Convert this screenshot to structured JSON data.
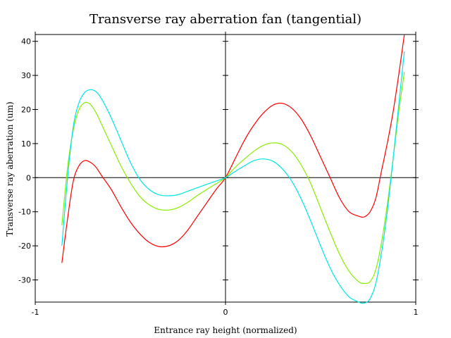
{
  "chart_data": {
    "type": "line",
    "title": "Transverse ray aberration fan (tangential)",
    "xlabel": "Entrance ray height (normalized)",
    "ylabel": "Transverse ray aberration (um)",
    "xlim": [
      -1,
      1
    ],
    "ylim": [
      -36.5,
      42
    ],
    "xticks": [
      -1,
      0,
      1
    ],
    "yticks": [
      -30,
      -20,
      -10,
      0,
      10,
      20,
      30,
      40
    ],
    "grid": false,
    "zero_lines": true,
    "legend": null,
    "series": [
      {
        "color": "#ff0000",
        "x": [
          -0.86,
          -0.83,
          -0.8,
          -0.77,
          -0.74,
          -0.71,
          -0.68,
          -0.65,
          -0.6,
          -0.55,
          -0.5,
          -0.45,
          -0.4,
          -0.35,
          -0.3,
          -0.25,
          -0.2,
          -0.15,
          -0.1,
          -0.05,
          0,
          0.05,
          0.1,
          0.15,
          0.2,
          0.25,
          0.3,
          0.35,
          0.4,
          0.45,
          0.5,
          0.55,
          0.6,
          0.65,
          0.7,
          0.73,
          0.76,
          0.79,
          0.82,
          0.85,
          0.88,
          0.91,
          0.94
        ],
        "y": [
          -25,
          -12,
          -1,
          3.5,
          5,
          4.5,
          3,
          0.5,
          -3.5,
          -8.5,
          -13,
          -16.5,
          -19,
          -20.2,
          -20,
          -18.5,
          -15.5,
          -11.5,
          -7.5,
          -3.5,
          0,
          5.5,
          11,
          15.5,
          19,
          21.3,
          21.8,
          20.3,
          17,
          12,
          6,
          0,
          -6,
          -10,
          -11.3,
          -11.5,
          -10,
          -6,
          2,
          10,
          19,
          30,
          42
        ]
      },
      {
        "color": "#88ee00",
        "x": [
          -0.86,
          -0.83,
          -0.8,
          -0.77,
          -0.74,
          -0.71,
          -0.68,
          -0.65,
          -0.6,
          -0.55,
          -0.5,
          -0.45,
          -0.4,
          -0.35,
          -0.3,
          -0.25,
          -0.2,
          -0.15,
          -0.1,
          -0.05,
          0,
          0.05,
          0.1,
          0.15,
          0.2,
          0.25,
          0.3,
          0.35,
          0.4,
          0.45,
          0.5,
          0.55,
          0.6,
          0.65,
          0.7,
          0.73,
          0.76,
          0.79,
          0.82,
          0.85,
          0.88,
          0.91,
          0.94
        ],
        "y": [
          -14,
          3,
          14,
          20,
          22,
          21.5,
          19,
          15.5,
          9.5,
          3.5,
          -1.5,
          -5.5,
          -8,
          -9.3,
          -9.5,
          -8.8,
          -7.3,
          -5.3,
          -3.5,
          -1.8,
          0,
          3,
          5.5,
          7.8,
          9.5,
          10.2,
          9.7,
          7.5,
          3.5,
          -2,
          -9,
          -16,
          -22.5,
          -27.5,
          -30.5,
          -31,
          -30.5,
          -27,
          -19,
          -8,
          5,
          19,
          31
        ]
      },
      {
        "color": "#00e5e5",
        "x": [
          -0.86,
          -0.83,
          -0.8,
          -0.77,
          -0.74,
          -0.71,
          -0.68,
          -0.65,
          -0.6,
          -0.55,
          -0.5,
          -0.45,
          -0.4,
          -0.35,
          -0.3,
          -0.25,
          -0.2,
          -0.15,
          -0.1,
          -0.05,
          0,
          0.05,
          0.1,
          0.15,
          0.2,
          0.25,
          0.3,
          0.35,
          0.4,
          0.45,
          0.5,
          0.55,
          0.6,
          0.65,
          0.7,
          0.73,
          0.76,
          0.79,
          0.82,
          0.85,
          0.88,
          0.91,
          0.94
        ],
        "y": [
          -20,
          0,
          15,
          22,
          25,
          25.8,
          25.2,
          23,
          17.5,
          11,
          4.5,
          -0.5,
          -3.5,
          -5,
          -5.3,
          -5,
          -4,
          -3,
          -2,
          -1,
          0,
          1.8,
          3.5,
          5,
          5.5,
          4.8,
          2.5,
          -1.2,
          -6.5,
          -13,
          -20,
          -26.5,
          -31.5,
          -35,
          -36.5,
          -36.8,
          -35.5,
          -31,
          -22,
          -10,
          5,
          21,
          37
        ]
      }
    ]
  }
}
